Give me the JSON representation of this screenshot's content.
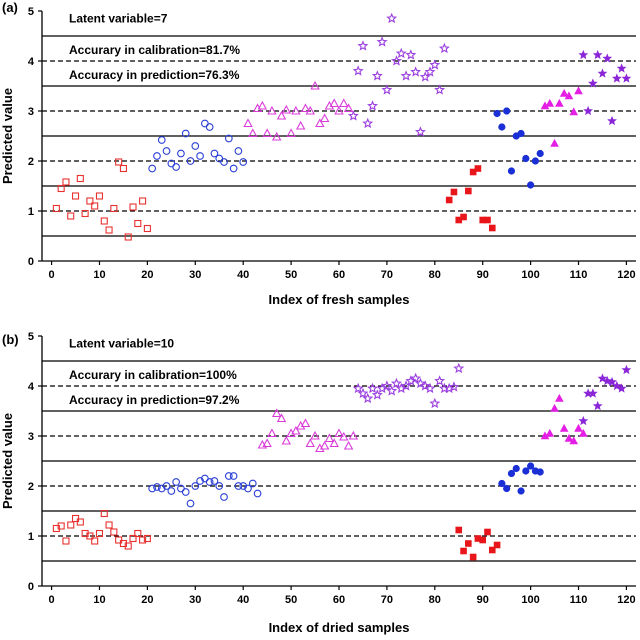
{
  "chart_data": [
    {
      "type": "scatter",
      "panel_label": "(a)",
      "xlabel": "Index of fresh samples",
      "ylabel": "Predicted value",
      "xlim": [
        -2,
        122
      ],
      "ylim": [
        0,
        5
      ],
      "xticks": [
        0,
        10,
        20,
        30,
        40,
        50,
        60,
        70,
        80,
        90,
        100,
        110,
        120
      ],
      "yticks": [
        0,
        1,
        2,
        3,
        4,
        5
      ],
      "annotations": [
        "Latent variable=7",
        "Accurary in calibration=81.7%",
        "Accuracy in prediction=76.3%"
      ],
      "solid_lines": [
        0.5,
        1.5,
        2.5,
        3.5,
        4.5
      ],
      "dashed_lines": [
        1,
        2,
        3,
        4
      ],
      "series": [
        {
          "marker": "open-square",
          "color": "#e8312f",
          "x": [
            1,
            2,
            3,
            4,
            5,
            6,
            7,
            8,
            9,
            10,
            11,
            12,
            13,
            14,
            15,
            16,
            17,
            18,
            19,
            20
          ],
          "y": [
            1.05,
            1.45,
            1.58,
            0.9,
            1.3,
            1.65,
            0.95,
            1.2,
            1.1,
            1.3,
            0.8,
            0.62,
            1.05,
            1.98,
            1.85,
            0.48,
            1.08,
            0.75,
            1.2,
            0.65
          ]
        },
        {
          "marker": "open-circle",
          "color": "#2a3fd6",
          "x": [
            21,
            22,
            23,
            24,
            25,
            26,
            27,
            28,
            29,
            30,
            31,
            32,
            33,
            34,
            35,
            36,
            37,
            38,
            39,
            40
          ],
          "y": [
            1.85,
            2.1,
            2.42,
            2.2,
            1.95,
            1.88,
            2.15,
            2.55,
            2.0,
            2.3,
            2.1,
            2.75,
            2.68,
            2.15,
            2.05,
            1.98,
            2.45,
            1.85,
            2.2,
            1.98
          ]
        },
        {
          "marker": "open-triangle",
          "color": "#d93bd9",
          "x": [
            41,
            42,
            43,
            44,
            45,
            46,
            47,
            48,
            49,
            50,
            51,
            52,
            53,
            54,
            55,
            56,
            57,
            58,
            59,
            60,
            61,
            62
          ],
          "y": [
            2.75,
            2.55,
            3.05,
            3.1,
            2.55,
            3.0,
            2.48,
            2.9,
            3.02,
            2.55,
            3.0,
            2.7,
            3.05,
            3.0,
            3.5,
            2.75,
            2.85,
            3.1,
            3.15,
            3.0,
            3.15,
            3.05
          ]
        },
        {
          "marker": "open-star",
          "color": "#9b3fe0",
          "x": [
            63,
            64,
            65,
            66,
            67,
            68,
            69,
            70,
            71,
            72,
            73,
            74,
            75,
            76,
            77,
            78,
            79,
            80,
            81,
            82
          ],
          "y": [
            2.9,
            3.8,
            4.3,
            2.75,
            3.1,
            3.7,
            4.38,
            3.42,
            4.85,
            4.0,
            4.15,
            3.7,
            4.12,
            3.78,
            2.58,
            3.68,
            3.78,
            3.92,
            3.42,
            4.25
          ]
        },
        {
          "marker": "filled-square",
          "color": "#e8161a",
          "x": [
            83,
            84,
            85,
            86,
            87,
            88,
            89,
            90,
            91,
            92
          ],
          "y": [
            1.22,
            1.38,
            0.82,
            0.88,
            1.4,
            1.78,
            1.85,
            0.82,
            0.82,
            0.66
          ]
        },
        {
          "marker": "filled-circle",
          "color": "#1a2fd6",
          "x": [
            93,
            94,
            95,
            96,
            97,
            98,
            99,
            100,
            101,
            102
          ],
          "y": [
            2.95,
            2.68,
            3.0,
            1.8,
            2.5,
            2.55,
            2.05,
            1.52,
            2.0,
            2.15
          ]
        },
        {
          "marker": "filled-triangle",
          "color": "#e51ee5",
          "x": [
            103,
            104,
            105,
            106,
            107,
            108,
            109,
            110
          ],
          "y": [
            3.1,
            3.15,
            2.35,
            3.15,
            3.35,
            3.3,
            2.98,
            3.4
          ]
        },
        {
          "marker": "filled-star",
          "color": "#8a26d8",
          "x": [
            111,
            112,
            113,
            114,
            115,
            116,
            117,
            118,
            119,
            120
          ],
          "y": [
            4.12,
            3.0,
            3.55,
            4.12,
            3.75,
            4.05,
            2.8,
            3.65,
            3.85,
            3.65
          ]
        }
      ]
    },
    {
      "type": "scatter",
      "panel_label": "(b)",
      "xlabel": "Index of dried samples",
      "ylabel": "Predicted value",
      "xlim": [
        -2,
        122
      ],
      "ylim": [
        0,
        5
      ],
      "xticks": [
        0,
        10,
        20,
        30,
        40,
        50,
        60,
        70,
        80,
        90,
        100,
        110,
        120
      ],
      "yticks": [
        0,
        1,
        2,
        3,
        4,
        5
      ],
      "annotations": [
        "Latent variable=10",
        "Accurary in calibration=100%",
        "Accuracy in prediction=97.2%"
      ],
      "solid_lines": [
        0.5,
        1.5,
        2.5,
        3.5,
        4.5
      ],
      "dashed_lines": [
        1,
        2,
        3,
        4
      ],
      "series": [
        {
          "marker": "open-square",
          "color": "#e8312f",
          "x": [
            1,
            2,
            3,
            4,
            5,
            6,
            7,
            8,
            9,
            10,
            11,
            12,
            13,
            14,
            15,
            16,
            17,
            18,
            19,
            20
          ],
          "y": [
            1.15,
            1.2,
            0.9,
            1.22,
            1.35,
            1.28,
            1.05,
            1.0,
            0.9,
            1.05,
            1.45,
            1.22,
            1.08,
            0.92,
            0.85,
            0.8,
            0.95,
            1.05,
            0.92,
            0.95
          ]
        },
        {
          "marker": "open-circle",
          "color": "#2a3fd6",
          "x": [
            21,
            22,
            23,
            24,
            25,
            26,
            27,
            28,
            29,
            30,
            31,
            32,
            33,
            34,
            35,
            36,
            37,
            38,
            39,
            40,
            41,
            42,
            43
          ],
          "y": [
            1.95,
            1.98,
            1.95,
            2.0,
            1.9,
            2.08,
            1.95,
            1.88,
            1.65,
            2.0,
            2.1,
            2.15,
            2.08,
            2.1,
            2.0,
            1.78,
            2.2,
            2.2,
            2.0,
            2.0,
            1.95,
            2.05,
            1.85
          ]
        },
        {
          "marker": "open-triangle",
          "color": "#d93bd9",
          "x": [
            44,
            45,
            46,
            47,
            48,
            49,
            50,
            51,
            52,
            53,
            54,
            55,
            56,
            57,
            58,
            59,
            60,
            61,
            62,
            63
          ],
          "y": [
            2.82,
            2.85,
            3.05,
            3.45,
            3.35,
            2.9,
            3.05,
            3.1,
            3.2,
            3.25,
            2.85,
            3.0,
            2.75,
            2.8,
            2.95,
            2.85,
            3.05,
            2.98,
            2.8,
            3.0
          ]
        },
        {
          "marker": "open-star",
          "color": "#9b3fe0",
          "x": [
            64,
            65,
            66,
            67,
            68,
            69,
            70,
            71,
            72,
            73,
            74,
            75,
            76,
            77,
            78,
            79,
            80,
            81,
            82,
            83,
            84,
            85
          ],
          "y": [
            3.95,
            3.85,
            3.75,
            3.95,
            3.82,
            3.95,
            4.0,
            3.9,
            4.05,
            3.95,
            4.0,
            4.1,
            4.15,
            4.05,
            4.0,
            3.95,
            3.65,
            4.1,
            3.95,
            3.95,
            3.98,
            4.35
          ]
        },
        {
          "marker": "filled-square",
          "color": "#e8161a",
          "x": [
            85,
            86,
            87,
            88,
            89,
            90,
            91,
            92,
            93
          ],
          "y": [
            1.12,
            0.7,
            0.85,
            0.58,
            0.95,
            0.92,
            1.08,
            0.72,
            0.82
          ]
        },
        {
          "marker": "filled-circle",
          "color": "#1a2fd6",
          "x": [
            94,
            95,
            96,
            97,
            98,
            99,
            100,
            101,
            102
          ],
          "y": [
            2.05,
            1.95,
            2.25,
            2.35,
            1.9,
            2.3,
            2.4,
            2.3,
            2.28
          ]
        },
        {
          "marker": "filled-triangle",
          "color": "#e51ee5",
          "x": [
            103,
            104,
            105,
            106,
            107,
            108,
            109,
            110,
            111
          ],
          "y": [
            3.0,
            3.05,
            3.55,
            3.75,
            3.15,
            2.95,
            2.9,
            3.15,
            3.05
          ]
        },
        {
          "marker": "filled-star",
          "color": "#8a26d8",
          "x": [
            111,
            112,
            113,
            114,
            115,
            116,
            117,
            118,
            119,
            120
          ],
          "y": [
            3.3,
            3.85,
            3.85,
            3.6,
            4.15,
            4.1,
            4.08,
            4.0,
            3.95,
            4.32
          ]
        }
      ]
    }
  ]
}
